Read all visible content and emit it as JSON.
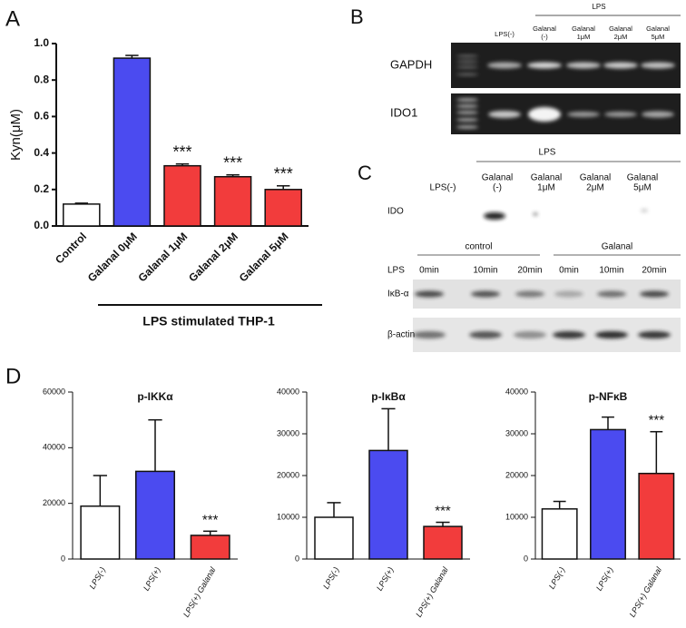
{
  "chart_data": [
    {
      "type": "bar",
      "panel": "A",
      "ylabel": "Kyn(μM)",
      "xlabel": "LPS stimulated THP-1",
      "categories": [
        "Control",
        "Galanal 0μM",
        "Galanal 1μM",
        "Galanal 2μM",
        "Galanal 5μM"
      ],
      "values": [
        0.12,
        0.92,
        0.33,
        0.27,
        0.2
      ],
      "errors": [
        0.005,
        0.015,
        0.01,
        0.01,
        0.02
      ],
      "significance": [
        null,
        null,
        "***",
        "***",
        "***"
      ],
      "colors": [
        "#ffffff",
        "#4b4bf0",
        "#f23c3c",
        "#f23c3c",
        "#f23c3c"
      ],
      "ylim": [
        0,
        1.0
      ],
      "yticks": [
        {
          "value": 0,
          "label": "0.0"
        },
        0.2,
        0.4,
        0.6,
        0.8,
        {
          "value": 1.0,
          "label": "1.0"
        }
      ]
    },
    {
      "type": "bar",
      "panel": "D",
      "title": "p-IKKα",
      "categories": [
        "LPS(-)",
        "LPS(+)",
        "LPS(+) Galanal"
      ],
      "values": [
        19000,
        31500,
        8500
      ],
      "errors": [
        11000,
        18500,
        1500
      ],
      "significance": [
        null,
        null,
        "***"
      ],
      "colors": [
        "#ffffff",
        "#4b4bf0",
        "#f23c3c"
      ],
      "ylim": [
        0,
        60000
      ],
      "yticks": [
        0,
        20000,
        40000,
        60000
      ]
    },
    {
      "type": "bar",
      "title": "p-IκBα",
      "categories": [
        "LPS(-)",
        "LPS(+)",
        "LPS(+) Galanal"
      ],
      "values": [
        10000,
        26000,
        7800
      ],
      "errors": [
        3500,
        10000,
        1000
      ],
      "significance": [
        null,
        null,
        "***"
      ],
      "colors": [
        "#ffffff",
        "#4b4bf0",
        "#f23c3c"
      ],
      "ylim": [
        0,
        40000
      ],
      "yticks": [
        0,
        10000,
        20000,
        30000,
        40000
      ]
    },
    {
      "type": "bar",
      "title": "p-NFκB",
      "categories": [
        "LPS(-)",
        "LPS(+)",
        "LPS(+) Galanal"
      ],
      "values": [
        12000,
        31000,
        20500
      ],
      "errors": [
        1800,
        3000,
        10000
      ],
      "significance": [
        null,
        null,
        "***"
      ],
      "colors": [
        "#ffffff",
        "#4b4bf0",
        "#f23c3c"
      ],
      "ylim": [
        0,
        40000
      ],
      "yticks": [
        0,
        10000,
        20000,
        30000,
        40000
      ]
    }
  ],
  "blot_b": {
    "panel": "B",
    "group_label": "LPS",
    "lanes": [
      [
        "LPS(-)"
      ],
      [
        "Galanal",
        "(-)"
      ],
      [
        "Galanal",
        "1μM"
      ],
      [
        "Galanal",
        "2μM"
      ],
      [
        "Galanal",
        "5μM"
      ]
    ],
    "rows": [
      "GAPDH",
      "IDO1"
    ]
  },
  "blot_c": {
    "panel": "C",
    "group_label": "LPS",
    "lanes": [
      [
        "LPS(-)"
      ],
      [
        "Galanal",
        "(-)"
      ],
      [
        "Galanal",
        "1μM"
      ],
      [
        "Galanal",
        "2μM"
      ],
      [
        "Galanal",
        "5μM"
      ]
    ],
    "row": "IDO",
    "groups": [
      "control",
      "Galanal"
    ],
    "time_label": "LPS",
    "times": [
      "0min",
      "10min",
      "20min",
      "0min",
      "10min",
      "20min"
    ],
    "rows2": [
      "IκB-α",
      "β-actin"
    ]
  }
}
